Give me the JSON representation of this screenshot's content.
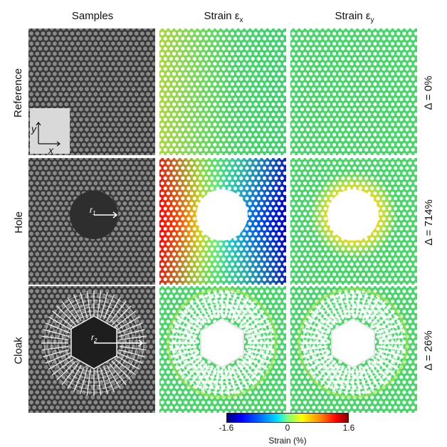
{
  "columns": [
    "Samples",
    "Strain ε",
    "Strain ε"
  ],
  "column_subscripts": [
    "",
    "x",
    "y"
  ],
  "rows": [
    {
      "label": "Reference",
      "delta": "Δ = 0%"
    },
    {
      "label": "Hole",
      "delta": "Δ = 714%"
    },
    {
      "label": "Cloak",
      "delta": "Δ = 26%"
    }
  ],
  "axis_labels": {
    "y": "y",
    "x": "x"
  },
  "radius_labels": {
    "hole": "r",
    "hole_sub": "1",
    "cloak": "r",
    "cloak_sub": "2"
  },
  "colorbar": {
    "ticks": [
      "-1.6",
      "0",
      "1.6"
    ],
    "label": "Strain (%)",
    "min": -1.6,
    "max": 1.6
  },
  "colors": {
    "sample_bg": "#3a3a3a",
    "lattice_hole": "#c8c8c8",
    "neutral_strain": "#48d66a"
  }
}
